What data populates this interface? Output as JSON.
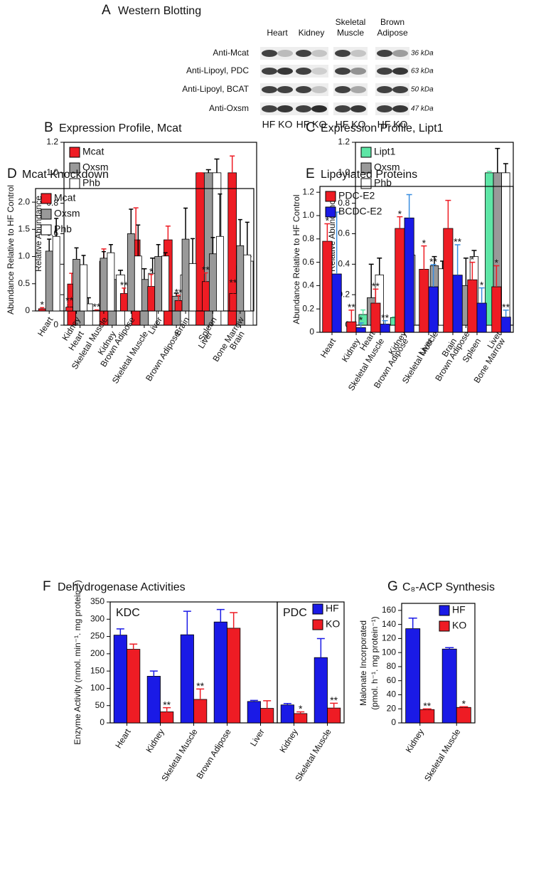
{
  "western_blot": {
    "panel": "A",
    "title": "Western Blotting",
    "columns": [
      [
        "Heart"
      ],
      [
        "Kidney"
      ],
      [
        "Skeletal",
        "Muscle"
      ],
      [
        "Brown",
        "Adipose"
      ]
    ],
    "rows": [
      "Anti-Mcat",
      "Anti-Lipoyl, PDC",
      "Anti-Lipoyl, BCAT",
      "Anti-Oxsm"
    ],
    "sizes": [
      "36 kDa",
      "63 kDa",
      "50 kDa",
      "47 kDa"
    ],
    "lanes": [
      "HF KO",
      "HF KO",
      "HF KO",
      "HF KO"
    ]
  },
  "chart_data": [
    {
      "panel": "B",
      "type": "bar",
      "title": "Expression Profile, Mcat",
      "ylabel": [
        "Relative Abundance"
      ],
      "categories": [
        "Heart",
        "Kidney",
        "Skeletal Muscle",
        "Brown Adipose",
        "Liver",
        "Brain"
      ],
      "ylim": [
        0,
        1.2
      ],
      "yticks": [
        0,
        0.2,
        0.4,
        0.6,
        0.8,
        {
          "value": 1,
          "label": "1.0"
        },
        1.2
      ],
      "legend": "upper left",
      "series": [
        {
          "name": "Mcat",
          "color": "#ee1c24",
          "error_color": "#ee1c24",
          "values": [
            0.27,
            0.42,
            0.56,
            0.56,
            1.0,
            1.0
          ],
          "errors": [
            0.07,
            0.08,
            0.21,
            0.09,
            0.0,
            0.11
          ]
        },
        {
          "name": "Oxsm",
          "color": "#999999",
          "error_color": "#000000",
          "values": [
            0.16,
            0.3,
            0.3,
            0.19,
            1.0,
            0.39
          ],
          "errors": [
            0.01,
            0.03,
            0.07,
            0.02,
            0.02,
            0.01
          ]
        },
        {
          "name": "Phb",
          "color": "#ffffff",
          "error_color": "#000000",
          "values": [
            0.14,
            0.33,
            0.34,
            0.33,
            1.0,
            0.42
          ],
          "errors": [
            0.04,
            0.03,
            0.1,
            0.04,
            0.09,
            0.03
          ]
        }
      ]
    },
    {
      "panel": "C",
      "type": "bar",
      "title": "Expression Profile, Lipt1",
      "ylabel": [
        "Relative Abundance"
      ],
      "categories": [
        "Heart",
        "Kidney",
        "Skeletal Muscle",
        "Brown Adipose",
        "Liver"
      ],
      "ylim": [
        0,
        1.2
      ],
      "yticks": [
        0,
        0.2,
        0.4,
        0.6,
        0.8,
        {
          "value": 1,
          "label": "1.0"
        },
        1.2
      ],
      "legend": "upper left",
      "series": [
        {
          "name": "Lipt1",
          "color": "#5ee6a6",
          "error_color": "#5ee6a6",
          "values": [
            0.07,
            0.05,
            0.08,
            0.11,
            1.0
          ],
          "errors": [
            0.03,
            0.005,
            0.07,
            0.02,
            0.01
          ]
        },
        {
          "name": "Oxsm",
          "color": "#999999",
          "error_color": "#000000",
          "values": [
            0.18,
            0.46,
            0.39,
            0.26,
            1.0
          ],
          "errors": [
            0.22,
            0.01,
            0.06,
            0.18,
            0.16
          ]
        },
        {
          "name": "Phb",
          "color": "#ffffff",
          "error_color": "#000000",
          "values": [
            0.33,
            0.46,
            0.37,
            0.45,
            1.0
          ],
          "errors": [
            0.11,
            0.06,
            0.05,
            0.04,
            0.06
          ]
        }
      ]
    },
    {
      "panel": "D",
      "type": "bar",
      "title": "Mcat Knockdown",
      "ylabel": [
        "Abundance Relative to HF Control"
      ],
      "categories": [
        "Heart",
        "Kidney",
        "Skeletal Muscle",
        "Brown Adipose",
        "Liver",
        "Brain",
        "Spleen",
        "Bone Marrow"
      ],
      "ylim": [
        0,
        2.25
      ],
      "yticks": [
        0,
        0.5,
        {
          "value": 1,
          "label": "1.0"
        },
        1.5,
        {
          "value": 2,
          "label": "2.0"
        }
      ],
      "legend": "upper left",
      "series": [
        {
          "name": "Mcat",
          "color": "#ee1c24",
          "error_color": "#ee1c24",
          "values": [
            0.04,
            0.07,
            0.01,
            0.32,
            0.45,
            0.19,
            0.54,
            0.32
          ],
          "errors": [
            0.02,
            0.07,
            0.01,
            0.1,
            0.22,
            0.1,
            0.16,
            0.15
          ],
          "stars": [
            "*",
            "**",
            "**",
            "**",
            "*",
            "**",
            "**",
            "**"
          ]
        },
        {
          "name": "Oxsm",
          "color": "#999999",
          "error_color": "#000000",
          "values": [
            1.1,
            0.95,
            0.97,
            1.42,
            1.0,
            1.32,
            1.05,
            1.2
          ],
          "errors": [
            0.22,
            0.21,
            0.12,
            0.45,
            0.22,
            0.57,
            0.3,
            0.48
          ]
        },
        {
          "name": "Phb",
          "color": "#ffffff",
          "error_color": "#000000",
          "values": [
            1.37,
            0.85,
            1.07,
            1.01,
            1.01,
            0.87,
            1.37,
            1.03
          ],
          "errors": [
            0.33,
            0.17,
            0.15,
            0.57,
            0.06,
            0.46,
            0.78,
            0.6
          ]
        }
      ]
    },
    {
      "panel": "E",
      "type": "bar",
      "title": "Lipoylated Proteins",
      "ylabel": [
        "Abundance Relative to HF Control"
      ],
      "categories": [
        "Heart",
        "Kidney",
        "Skeletal Muscle",
        "Brown Adipose",
        "Liver",
        "Brain",
        "Spleen",
        "Bone Marrow"
      ],
      "ylim": [
        0,
        1.25
      ],
      "yticks": [
        0,
        0.2,
        0.4,
        0.6,
        0.8,
        {
          "value": 1,
          "label": "1.0"
        },
        1.2
      ],
      "legend": "upper left",
      "series": [
        {
          "name": "PDC-E2",
          "color": "#ee1c24",
          "error_color": "#ee1c24",
          "values": [
            0.78,
            0.09,
            0.25,
            0.89,
            0.54,
            0.89,
            0.45,
            0.39
          ],
          "errors": [
            0.15,
            0.1,
            0.12,
            0.1,
            0.2,
            0.24,
            0.15,
            0.18
          ],
          "stars": [
            "*",
            "**",
            "**",
            "*",
            "*",
            null,
            "*",
            "*"
          ]
        },
        {
          "name": "BCDC-E2",
          "color": "#1a1ae6",
          "error_color": "#3a8ee0",
          "values": [
            0.5,
            0.04,
            0.07,
            0.98,
            0.39,
            0.49,
            0.25,
            0.13
          ],
          "errors": [
            0.53,
            0.04,
            0.03,
            0.2,
            0.19,
            0.26,
            0.13,
            0.06
          ],
          "stars": [
            null,
            "*",
            "**",
            null,
            "**",
            "**",
            "*",
            "**"
          ]
        }
      ]
    },
    {
      "panel": "F",
      "type": "bar",
      "title": "Dehydrogenase Activities",
      "ylabel": [
        "Enzyme Activity (nmol. min⁻¹. mg protein⁻¹)"
      ],
      "ylim": [
        0,
        350
      ],
      "yticks": [
        0,
        50,
        100,
        150,
        200,
        250,
        300,
        350
      ],
      "legend": "upper right",
      "series": [
        {
          "name": "HF",
          "color": "#1a1ae6",
          "error_color": "#1a1ae6"
        },
        {
          "name": "KO",
          "color": "#ee1c24",
          "error_color": "#ee1c24"
        }
      ],
      "groups": [
        {
          "label": "KDC",
          "categories": [
            "Heart",
            "Kidney",
            "Skeletal Muscle",
            "Brown Adipose",
            "Liver"
          ],
          "series": [
            {
              "values": [
                254,
                135,
                255,
                292,
                62
              ],
              "errors": [
                18,
                15,
                68,
                36,
                3
              ]
            },
            {
              "values": [
                213,
                32,
                68,
                274,
                42
              ],
              "errors": [
                15,
                12,
                30,
                45,
                22
              ],
              "stars": [
                null,
                "**",
                "**",
                null,
                null
              ]
            }
          ]
        },
        {
          "label": "PDC",
          "categories": [
            "Kidney",
            "Skeletal Muscle"
          ],
          "series": [
            {
              "values": [
                52,
                189
              ],
              "errors": [
                4,
                55
              ]
            },
            {
              "values": [
                27,
                43
              ],
              "errors": [
                5,
                14
              ],
              "stars": [
                "*",
                "**"
              ]
            }
          ]
        }
      ]
    },
    {
      "panel": "G",
      "type": "bar",
      "title": "C₈-ACP Synthesis",
      "ylabel": [
        "Malonate Incorporated",
        "(pmol. h⁻¹. mg protein⁻¹)"
      ],
      "categories": [
        "Kidney",
        "Skeletal Muscle"
      ],
      "ylim": [
        0,
        170
      ],
      "yticks": [
        0,
        20,
        40,
        60,
        80,
        100,
        120,
        140,
        160
      ],
      "legend": "upper right",
      "series": [
        {
          "name": "HF",
          "color": "#1a1ae6",
          "error_color": "#1a1ae6",
          "values": [
            134,
            105
          ],
          "errors": [
            15,
            2
          ]
        },
        {
          "name": "KO",
          "color": "#ee1c24",
          "error_color": "#ee1c24",
          "values": [
            19,
            22
          ],
          "errors": [
            1,
            1
          ],
          "stars": [
            "**",
            "*"
          ]
        }
      ]
    }
  ]
}
